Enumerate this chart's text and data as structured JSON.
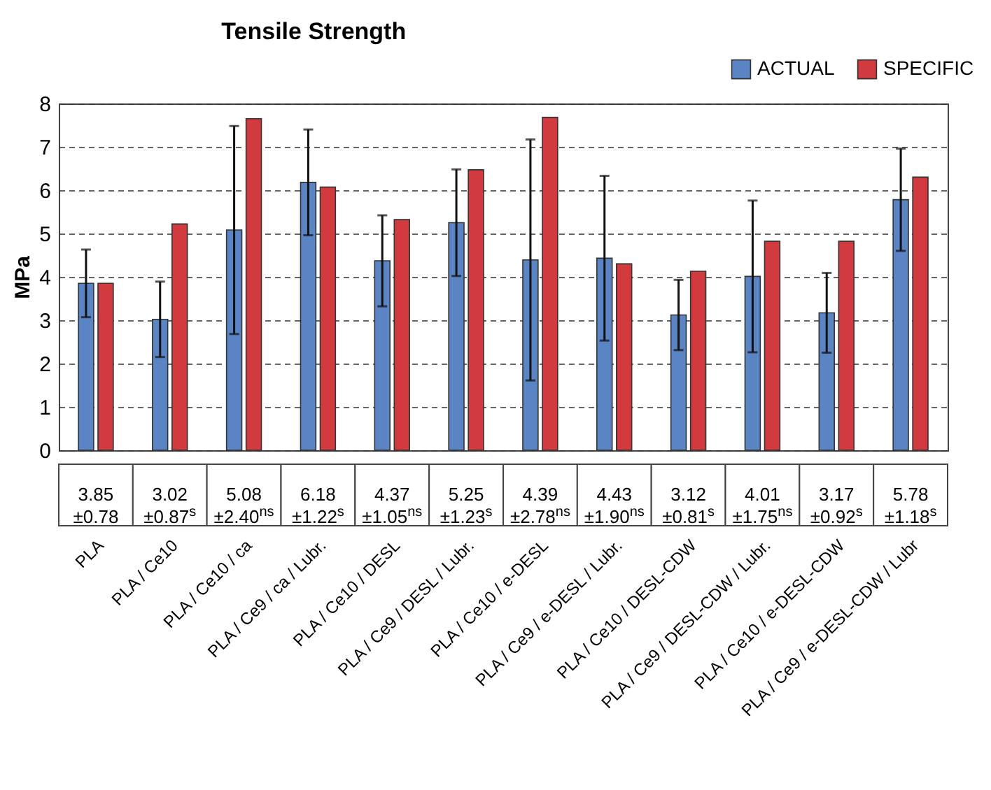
{
  "chart_data": {
    "type": "bar",
    "title": "Tensile Strength",
    "ylabel": "MPa",
    "categories": [
      "PLA",
      "PLA / Ce10",
      "PLA / Ce10 / ca",
      "PLA / Ce9 / ca / Lubr.",
      "PLA / Ce10 / DESL",
      "PLA / Ce9 / DESL / Lubr.",
      "PLA / Ce10 / e-DESL",
      "PLA / Ce9 / e-DESL / Lubr.",
      "PLA / Ce10 / DESL-CDW",
      "PLA / Ce9 / DESL-CDW / Lubr.",
      "PLA / Ce10 / e-DESL-CDW",
      "PLA / Ce9 / e-DESL-CDW / Lubr"
    ],
    "series": [
      {
        "name": "ACTUAL",
        "color": "#5b84c4",
        "values": [
          3.85,
          3.02,
          5.08,
          6.18,
          4.37,
          5.25,
          4.39,
          4.43,
          3.12,
          4.01,
          3.17,
          5.78
        ],
        "errors": [
          0.78,
          0.87,
          2.4,
          1.22,
          1.05,
          1.23,
          2.78,
          1.9,
          0.81,
          1.75,
          0.92,
          1.18
        ],
        "value_labels": [
          "3.85\n±0.78",
          "3.02\n±0.87$^{s}$",
          "5.08\n±2.40$^{ns}$",
          "6.18\n±1.22$^{s}$",
          "4.37\n±1.05$^{ns}$",
          "5.25\n±1.23$^{s}$",
          "4.39\n±2.78$^{ns}$",
          "4.43\n±1.90$^{ns}$",
          "3.12\n±0.81$^{s}$",
          "4.01\n±1.75$^{ns}$",
          "3.17\n±0.92$^{s}$",
          "5.78\n±1.18$^{s}$"
        ]
      },
      {
        "name": "SPECIFIC",
        "color": "#d13b40",
        "values": [
          3.85,
          5.22,
          7.65,
          6.07,
          5.32,
          6.47,
          7.68,
          4.3,
          4.13,
          4.82,
          4.82,
          6.3
        ]
      }
    ],
    "ylim": [
      0,
      8
    ],
    "yticks": [
      0,
      1,
      2,
      3,
      4,
      5,
      6,
      7,
      8
    ],
    "grid": "y",
    "legend": "top right"
  }
}
